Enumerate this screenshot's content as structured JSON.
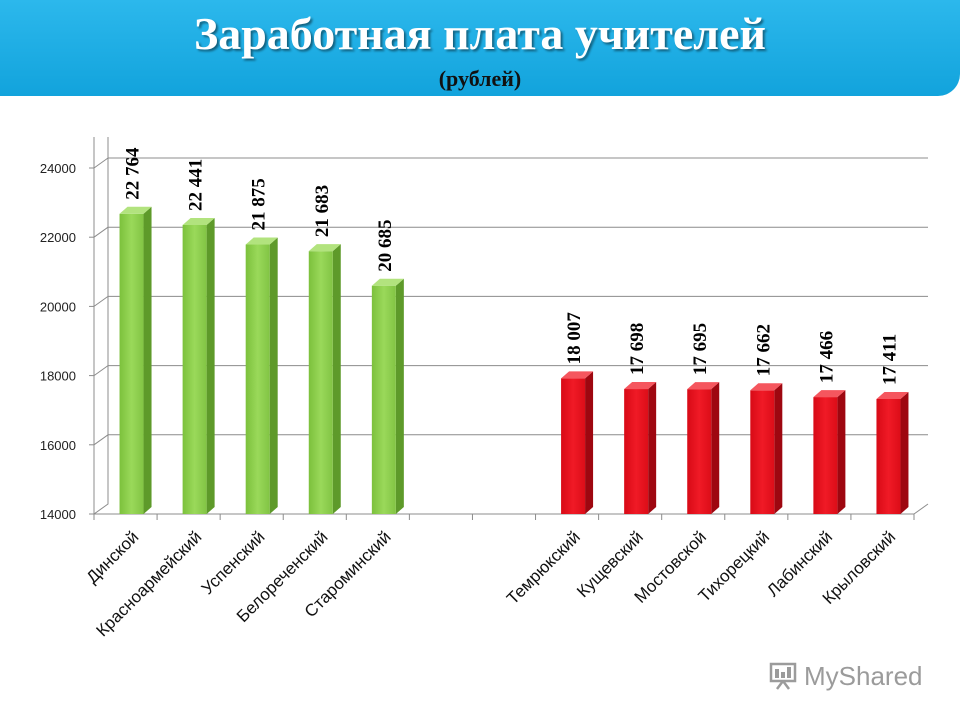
{
  "header": {
    "title": "Заработная плата учителей",
    "subtitle": "(рублей)"
  },
  "colors": {
    "banner": "#1aaee5",
    "bar_green": "#8fd14f",
    "bar_red": "#e8101c"
  },
  "watermark": {
    "text": "MyShared",
    "icon": "presentation-icon"
  },
  "chart_data": {
    "type": "bar",
    "categories": [
      "Динской",
      "Красноармейский",
      "Успенский",
      "Белореченский",
      "Староминский",
      "",
      "",
      "Темрюкский",
      "Кущевский",
      "Мостовской",
      "Тихорецкий",
      "Лабинский",
      "Крыловский"
    ],
    "values": [
      22764,
      22441,
      21875,
      21683,
      20685,
      null,
      null,
      18007,
      17698,
      17695,
      17662,
      17466,
      17411
    ],
    "data_labels": [
      "22 764",
      "22 441",
      "21 875",
      "21 683",
      "20 685",
      "",
      "",
      "18 007",
      "17 698",
      "17 695",
      "17 662",
      "17 466",
      "17 411"
    ],
    "bar_colors": [
      "green",
      "green",
      "green",
      "green",
      "green",
      "",
      "",
      "red",
      "red",
      "red",
      "red",
      "red",
      "red"
    ],
    "ylim": [
      14000,
      24000
    ],
    "yticks": [
      14000,
      16000,
      18000,
      20000,
      22000,
      24000
    ],
    "title": "",
    "xlabel": "",
    "ylabel": "",
    "grid": true,
    "legend": "none"
  }
}
